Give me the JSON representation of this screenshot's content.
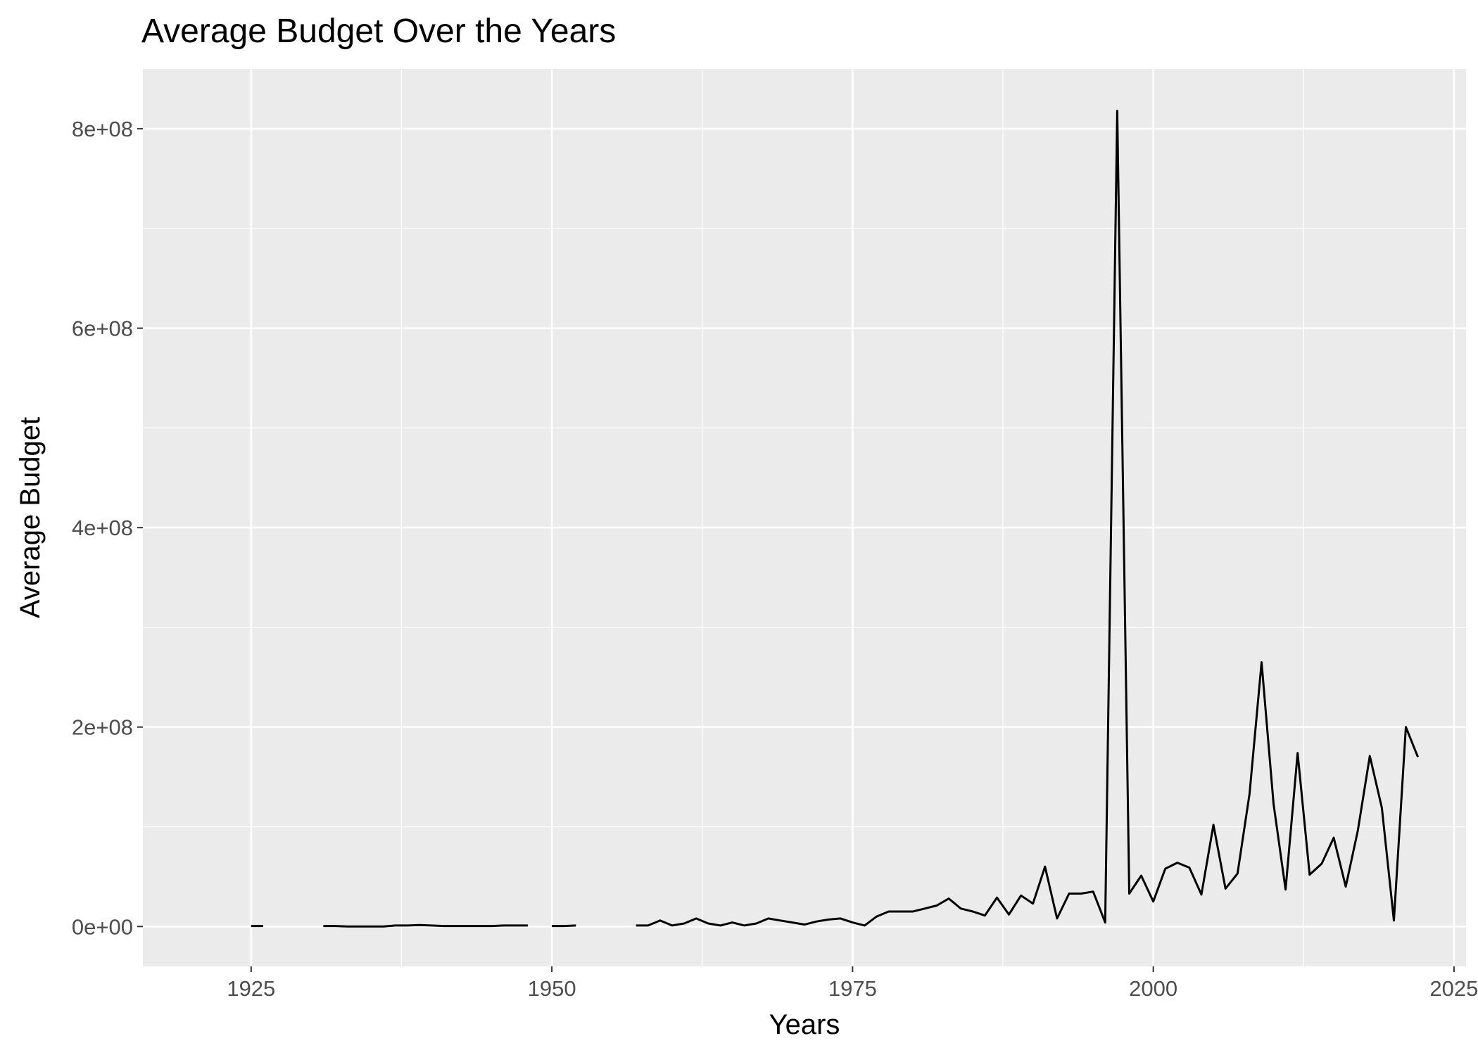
{
  "chart_data": {
    "type": "line",
    "title": "Average Budget Over the Years",
    "xlabel": "Years",
    "ylabel": "Average Budget",
    "xlim": [
      1916,
      2026
    ],
    "ylim": [
      -40000000,
      860000000
    ],
    "x_ticks": [
      1925,
      1950,
      1975,
      2000,
      2025
    ],
    "y_ticks": [
      {
        "value": 0,
        "label": "0e+00"
      },
      {
        "value": 200000000,
        "label": "2e+08"
      },
      {
        "value": 400000000,
        "label": "4e+08"
      },
      {
        "value": 600000000,
        "label": "6e+08"
      },
      {
        "value": 800000000,
        "label": "8e+08"
      }
    ],
    "grid": true,
    "background": "#EBEBEB",
    "gridline_color": "#FFFFFF",
    "line_color": "#000000",
    "series": [
      {
        "segments": [
          [
            [
              1925,
              500000
            ],
            [
              1926,
              500000
            ]
          ],
          [
            [
              1931,
              500000
            ],
            [
              1932,
              500000
            ],
            [
              1933,
              0
            ],
            [
              1934,
              0
            ],
            [
              1935,
              0
            ],
            [
              1936,
              0
            ],
            [
              1937,
              1000000
            ],
            [
              1938,
              1000000
            ],
            [
              1939,
              1500000
            ],
            [
              1940,
              1000000
            ],
            [
              1941,
              500000
            ],
            [
              1942,
              500000
            ],
            [
              1943,
              500000
            ],
            [
              1944,
              500000
            ],
            [
              1945,
              500000
            ],
            [
              1946,
              1000000
            ],
            [
              1947,
              1000000
            ],
            [
              1948,
              1000000
            ]
          ],
          [
            [
              1950,
              500000
            ],
            [
              1951,
              500000
            ],
            [
              1952,
              1000000
            ]
          ],
          [
            [
              1957,
              1000000
            ],
            [
              1958,
              1000000
            ],
            [
              1959,
              6000000
            ],
            [
              1960,
              1000000
            ],
            [
              1961,
              3000000
            ],
            [
              1962,
              8000000
            ],
            [
              1963,
              3000000
            ],
            [
              1964,
              1000000
            ],
            [
              1965,
              4000000
            ],
            [
              1966,
              1000000
            ],
            [
              1967,
              3000000
            ],
            [
              1968,
              8000000
            ],
            [
              1969,
              6000000
            ],
            [
              1970,
              4000000
            ],
            [
              1971,
              2000000
            ],
            [
              1972,
              5000000
            ],
            [
              1973,
              7000000
            ],
            [
              1974,
              8000000
            ],
            [
              1975,
              4000000
            ],
            [
              1976,
              1000000
            ],
            [
              1977,
              10000000
            ],
            [
              1978,
              15000000
            ],
            [
              1979,
              15000000
            ],
            [
              1980,
              15000000
            ],
            [
              1981,
              18000000
            ],
            [
              1982,
              21000000
            ],
            [
              1983,
              28000000
            ],
            [
              1984,
              18000000
            ],
            [
              1985,
              15000000
            ],
            [
              1986,
              11000000
            ],
            [
              1987,
              29000000
            ],
            [
              1988,
              12000000
            ],
            [
              1989,
              31000000
            ],
            [
              1990,
              23000000
            ],
            [
              1991,
              60000000
            ],
            [
              1992,
              8000000
            ],
            [
              1993,
              33000000
            ],
            [
              1994,
              33000000
            ],
            [
              1995,
              35000000
            ],
            [
              1996,
              4000000
            ],
            [
              1997,
              818000000
            ],
            [
              1998,
              33000000
            ],
            [
              1999,
              51000000
            ],
            [
              2000,
              25000000
            ],
            [
              2001,
              58000000
            ],
            [
              2002,
              64000000
            ],
            [
              2003,
              59000000
            ],
            [
              2004,
              32000000
            ],
            [
              2005,
              102000000
            ],
            [
              2006,
              38000000
            ],
            [
              2007,
              53000000
            ],
            [
              2008,
              133000000
            ],
            [
              2009,
              265000000
            ],
            [
              2010,
              123000000
            ],
            [
              2011,
              37000000
            ],
            [
              2012,
              174000000
            ],
            [
              2013,
              52000000
            ],
            [
              2014,
              63000000
            ],
            [
              2015,
              89000000
            ],
            [
              2016,
              40000000
            ],
            [
              2017,
              96000000
            ],
            [
              2018,
              171000000
            ],
            [
              2019,
              119000000
            ],
            [
              2020,
              6000000
            ],
            [
              2021,
              200000000
            ],
            [
              2022,
              170000000
            ]
          ]
        ]
      }
    ]
  }
}
